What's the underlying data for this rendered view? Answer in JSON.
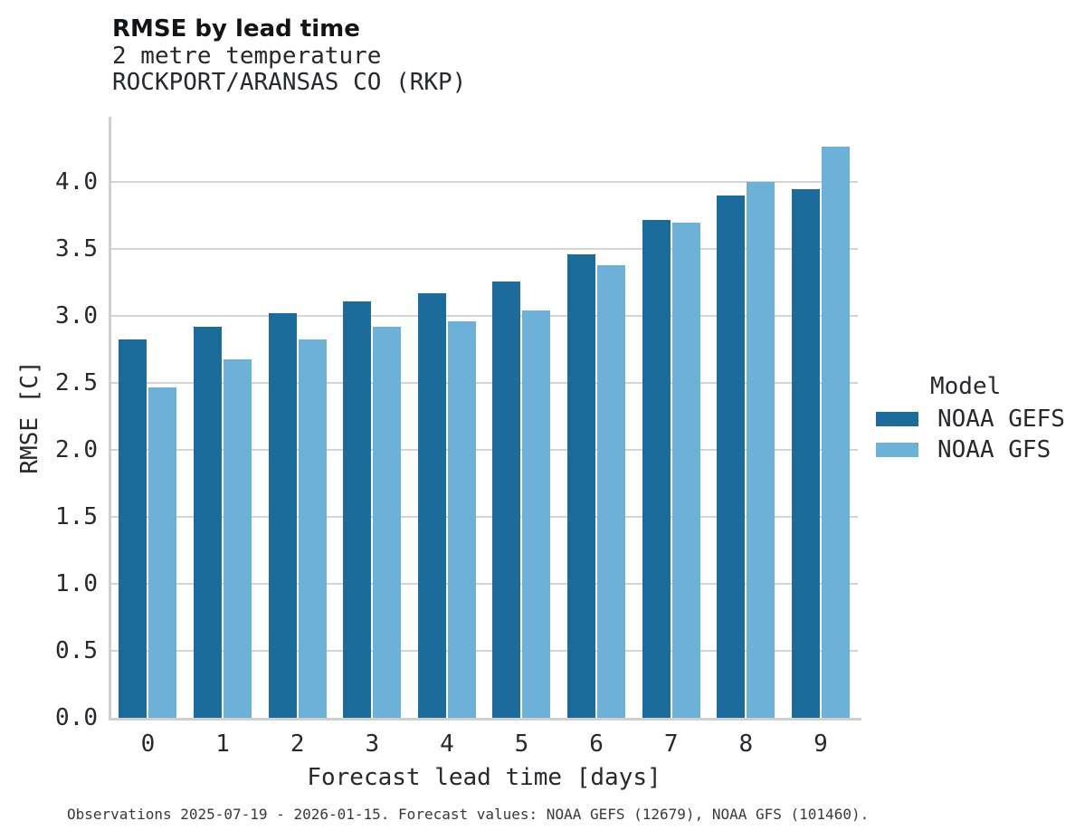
{
  "header": {
    "title": "RMSE by lead time",
    "subtitle_line1": "2 metre temperature",
    "subtitle_line2": "ROCKPORT/ARANSAS CO (RKP)"
  },
  "chart_data": {
    "type": "bar",
    "title": "RMSE by lead time",
    "subtitle": [
      "2 metre temperature",
      "ROCKPORT/ARANSAS CO (RKP)"
    ],
    "categories": [
      "0",
      "1",
      "2",
      "3",
      "4",
      "5",
      "6",
      "7",
      "8",
      "9"
    ],
    "series": [
      {
        "name": "NOAA GEFS",
        "color": "#1b6b9d",
        "values": [
          2.83,
          2.92,
          3.02,
          3.11,
          3.17,
          3.26,
          3.46,
          3.72,
          3.9,
          3.95
        ]
      },
      {
        "name": "NOAA GFS",
        "color": "#6db1d9",
        "values": [
          2.47,
          2.68,
          2.83,
          2.92,
          2.96,
          3.04,
          3.38,
          3.7,
          4.0,
          4.27
        ]
      }
    ],
    "xlabel": "Forecast lead time [days]",
    "ylabel": "RMSE [C]",
    "ylim": [
      0,
      4.49
    ],
    "yticks": [
      0.0,
      0.5,
      1.0,
      1.5,
      2.0,
      2.5,
      3.0,
      3.5,
      4.0
    ],
    "grid": "horizontal",
    "legend_title": "Model",
    "legend_position": "right"
  },
  "colors": {
    "bar_dark_blue": "#1b6b9d",
    "bar_light_blue": "#6db1d9",
    "gridline": "#d4d4d4",
    "spine": "#d0d0d0",
    "text": "#26292d"
  },
  "footer": {
    "note": "Observations 2025-07-19 - 2026-01-15. Forecast values: NOAA GEFS (12679), NOAA GFS (101460)."
  }
}
